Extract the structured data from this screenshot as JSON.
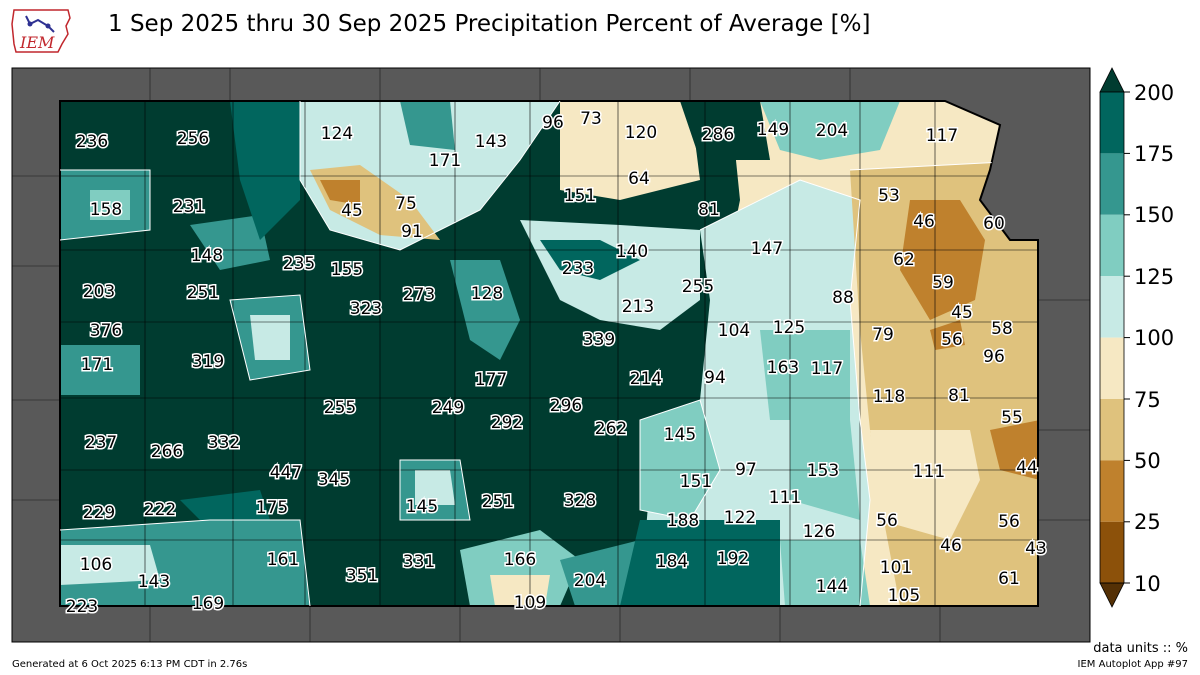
{
  "header": {
    "title": "1 Sep 2025 thru 30 Sep 2025 Precipitation Percent of Average [%]",
    "logo_text": "IEM"
  },
  "legend": {
    "ticks": [
      "200",
      "175",
      "150",
      "125",
      "100",
      "75",
      "50",
      "25",
      "10"
    ],
    "colors": [
      "#01665e",
      "#35978f",
      "#80cdc1",
      "#c7eae5",
      "#f6e8c3",
      "#dfc27d",
      "#bf812d",
      "#8c510a"
    ],
    "over_color": "#003c30",
    "under_color": "#543005"
  },
  "footer": {
    "units": "data units :: %",
    "generated": "Generated at 6 Oct 2025 6:13 PM CDT in 2.76s",
    "app": "IEM Autoplot App #97"
  },
  "values": [
    "236",
    "256",
    "124",
    "171",
    "143",
    "96",
    "73",
    "120",
    "286",
    "149",
    "204",
    "117",
    "158",
    "231",
    "45",
    "75",
    "91",
    "151",
    "64",
    "81",
    "53",
    "46",
    "60",
    "148",
    "235",
    "155",
    "233",
    "140",
    "255",
    "147",
    "62",
    "59",
    "203",
    "251",
    "323",
    "273",
    "128",
    "213",
    "88",
    "45",
    "58",
    "376",
    "339",
    "104",
    "125",
    "79",
    "56",
    "96",
    "171",
    "319",
    "177",
    "214",
    "94",
    "163",
    "117",
    "255",
    "249",
    "296",
    "118",
    "81",
    "237",
    "266",
    "332",
    "292",
    "262",
    "145",
    "55",
    "447",
    "345",
    "97",
    "153",
    "111",
    "44",
    "229",
    "222",
    "175",
    "145",
    "251",
    "328",
    "151",
    "188",
    "122",
    "111",
    "126",
    "56",
    "56",
    "106",
    "143",
    "161",
    "351",
    "331",
    "166",
    "204",
    "184",
    "192",
    "46",
    "43",
    "223",
    "169",
    "109",
    "144",
    "101",
    "105",
    "61"
  ]
}
